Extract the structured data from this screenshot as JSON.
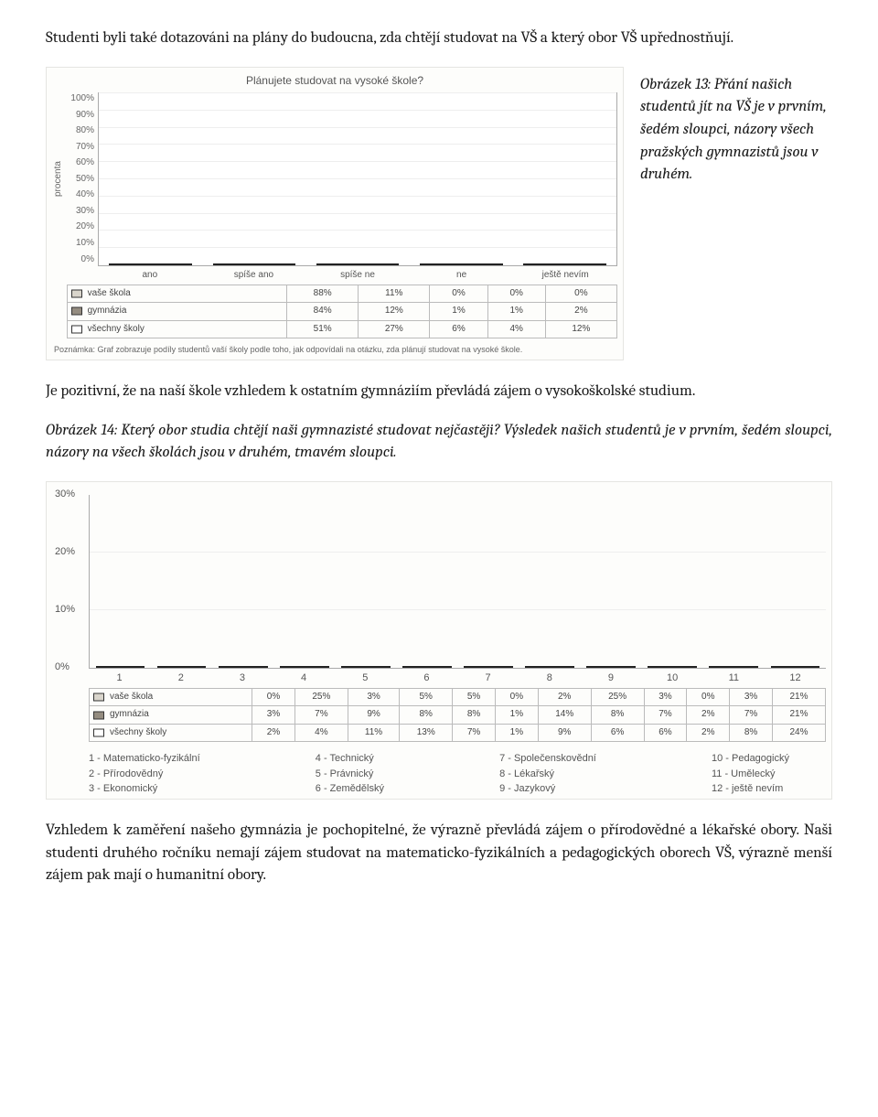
{
  "intro": "Studenti byli také dotazováni na plány do budoucna, zda chtějí studovat na VŠ a který obor VŠ upřednostňují.",
  "chart1": {
    "title": "Plánujete studovat na vysoké škole?",
    "ylabel": "procenta",
    "ymax": 100,
    "yticks": [
      "100%",
      "90%",
      "80%",
      "70%",
      "60%",
      "50%",
      "40%",
      "30%",
      "20%",
      "10%",
      "0%"
    ],
    "categories": [
      "ano",
      "spíše ano",
      "spíše ne",
      "ne",
      "ještě nevím"
    ],
    "series": [
      {
        "name": "vaše škola",
        "swatch": "light",
        "values": [
          88,
          11,
          0,
          0,
          0
        ]
      },
      {
        "name": "gymnázia",
        "swatch": "dark",
        "values": [
          84,
          12,
          1,
          1,
          2
        ]
      },
      {
        "name": "všechny školy",
        "swatch": "outline",
        "values": [
          51,
          27,
          6,
          4,
          12
        ]
      }
    ],
    "note": "Poznámka: Graf zobrazuje podíly studentů vaší školy podle toho, jak odpovídali na otázku, zda plánují studovat na vysoké škole."
  },
  "caption1": "Obrázek 13: Přání našich studentů jít na VŠ je v prvním, šedém sloupci, názory všech pražských gymnazistů jsou v druhém.",
  "mid1": "Je pozitivní, že na naší škole vzhledem k ostatním gymnáziím převládá zájem o vysokoškolské studium.",
  "caption2": "Obrázek 14: Který obor studia chtějí naši gymnazisté studovat nejčastěji? Výsledek našich studentů je v prvním, šedém sloupci, názory na všech školách jsou v druhém, tmavém sloupci.",
  "chart2": {
    "ymax": 30,
    "yticks": [
      {
        "label": "30%",
        "pct": 100
      },
      {
        "label": "20%",
        "pct": 66.67
      },
      {
        "label": "10%",
        "pct": 33.33
      },
      {
        "label": "0%",
        "pct": 0
      }
    ],
    "categories": [
      "1",
      "2",
      "3",
      "4",
      "5",
      "6",
      "7",
      "8",
      "9",
      "10",
      "11",
      "12"
    ],
    "series": [
      {
        "name": "vaše škola",
        "swatch": "light",
        "values": [
          0,
          25,
          3,
          5,
          5,
          0,
          2,
          25,
          3,
          0,
          3,
          21
        ]
      },
      {
        "name": "gymnázia",
        "swatch": "dark",
        "values": [
          3,
          7,
          9,
          8,
          8,
          1,
          14,
          8,
          7,
          2,
          7,
          21
        ]
      },
      {
        "name": "všechny školy",
        "swatch": "outline",
        "values": [
          2,
          4,
          11,
          13,
          7,
          1,
          9,
          6,
          6,
          2,
          8,
          24
        ]
      }
    ],
    "legend_cols": [
      [
        "1 - Matematicko-fyzikální",
        "2 - Přírodovědný",
        "3 - Ekonomický"
      ],
      [
        "4 - Technický",
        "5 - Právnický",
        "6 - Zemědělský"
      ],
      [
        "7 - Společenskovědní",
        "8 - Lékařský",
        "9 - Jazykový"
      ],
      [
        "10 - Pedagogický",
        "11 - Umělecký",
        "12 - ještě nevím"
      ]
    ]
  },
  "closing": "Vzhledem k zaměření našeho gymnázia je pochopitelné, že výrazně převládá zájem o přírodovědné a lékařské obory. Naši studenti druhého ročníku nemají zájem studovat na matematicko-fyzikálních a pedagogických oborech VŠ, výrazně menší zájem pak mají o humanitní obory."
}
